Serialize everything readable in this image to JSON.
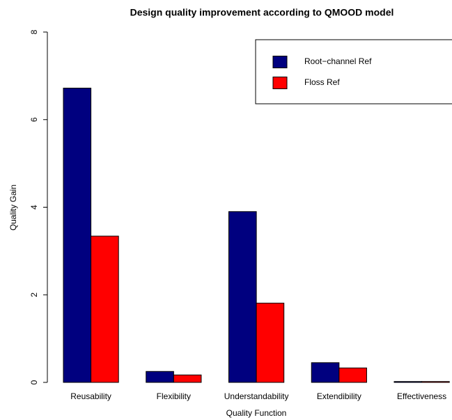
{
  "chart_data": {
    "type": "bar",
    "title": "Design quality improvement according to QMOOD model",
    "x_label": "Quality Function",
    "y_label": "Quality Gain",
    "categories": [
      "Reusability",
      "Flexibility",
      "Understandability",
      "Extendibility",
      "Effectiveness"
    ],
    "series": [
      {
        "name": "Root−channel Ref",
        "color": "#00007f",
        "values": [
          6.72,
          0.25,
          3.9,
          0.45,
          0.02
        ]
      },
      {
        "name": "Floss Ref",
        "color": "#ff0000",
        "values": [
          3.34,
          0.17,
          1.81,
          0.33,
          0.02
        ]
      }
    ],
    "ylim": [
      0,
      8
    ],
    "yticks": [
      0,
      2,
      4,
      6,
      8
    ],
    "legend": "top-right"
  }
}
